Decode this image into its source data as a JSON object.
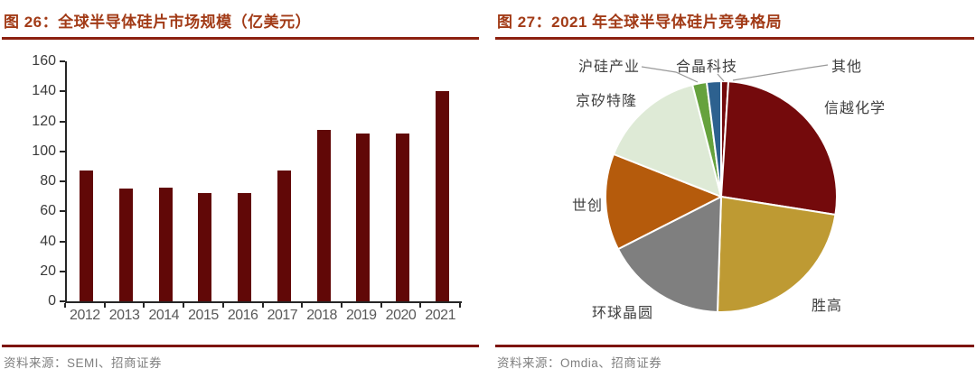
{
  "figures": [
    {
      "title": "图 26：全球半导体硅片市场规模（亿美元）",
      "source": "资料来源：SEMI、招商证券",
      "chart_data": {
        "type": "bar",
        "categories": [
          "2012",
          "2013",
          "2014",
          "2015",
          "2016",
          "2017",
          "2018",
          "2019",
          "2020",
          "2021"
        ],
        "values": [
          87,
          75,
          76,
          72,
          72,
          87,
          114,
          112,
          112,
          140
        ],
        "title": "全球半导体硅片市场规模（亿美元）",
        "xlabel": "",
        "ylabel": "",
        "ylim": [
          0,
          160
        ],
        "yticks": [
          0,
          20,
          40,
          60,
          80,
          100,
          120,
          140,
          160
        ],
        "grid": false,
        "bar_color": "#610807",
        "legend": "none"
      }
    },
    {
      "title": "图 27：2021 年全球半导体硅片竞争格局",
      "source": "资料来源：Omdia、招商证券",
      "chart_data": {
        "type": "pie",
        "labels": [
          "其他",
          "信越化学",
          "胜高",
          "环球晶圆",
          "世创",
          "京矽特隆",
          "沪硅产业",
          "合晶科技"
        ],
        "values": [
          1,
          26.5,
          23,
          17,
          13.5,
          15,
          2,
          2
        ],
        "unit": "percent-estimated",
        "colors": [
          "#740A0C",
          "#740A0C",
          "#BE9A33",
          "#7F7F7F",
          "#B55B0C",
          "#DEEAD6",
          "#66A23D",
          "#2D618F"
        ],
        "start_angle_deg": 0,
        "direction": "clockwise",
        "legend_position": "outside-labels"
      }
    }
  ],
  "colors": {
    "title_text": "#A23B17",
    "title_rule": "#8C2110",
    "source_rule": "#7D140C",
    "source_text": "#7F7F7F",
    "axis": "#262626",
    "xtick_text": "#595959",
    "ytick_text": "#3B3B3B"
  }
}
